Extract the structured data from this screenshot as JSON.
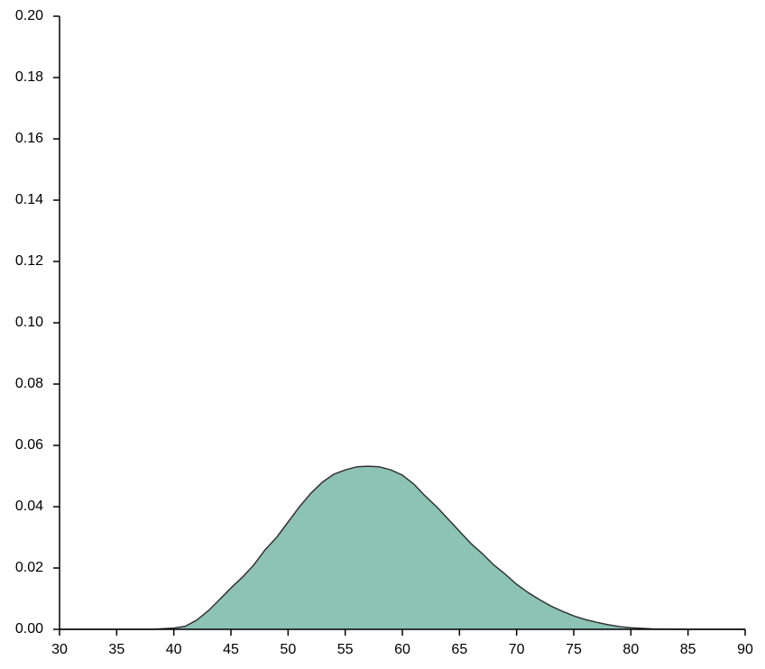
{
  "chart_data": {
    "type": "area",
    "x": [
      30,
      35,
      38,
      39,
      40,
      41,
      42,
      43,
      44,
      45,
      46,
      47,
      48,
      49,
      50,
      51,
      52,
      53,
      54,
      55,
      56,
      57,
      58,
      59,
      60,
      61,
      62,
      63,
      64,
      65,
      66,
      67,
      68,
      69,
      70,
      71,
      72,
      73,
      74,
      75,
      76,
      77,
      78,
      79,
      80,
      82,
      85,
      90
    ],
    "series": [
      {
        "color": "#8cc3b4",
        "values": [
          0,
          0,
          0,
          0.0002,
          0.0004,
          0.001,
          0.003,
          0.006,
          0.0097,
          0.0135,
          0.017,
          0.021,
          0.026,
          0.03,
          0.035,
          0.04,
          0.0444,
          0.048,
          0.0506,
          0.052,
          0.053,
          0.0532,
          0.053,
          0.052,
          0.0503,
          0.0474,
          0.0435,
          0.04,
          0.036,
          0.032,
          0.028,
          0.0247,
          0.021,
          0.018,
          0.0147,
          0.012,
          0.0097,
          0.0076,
          0.0059,
          0.0044,
          0.0032,
          0.0023,
          0.0015,
          0.0009,
          0.0005,
          0.0001,
          0,
          0
        ]
      }
    ],
    "xlim": [
      30,
      90
    ],
    "xticks": [
      30,
      35,
      40,
      45,
      50,
      55,
      60,
      65,
      70,
      75,
      80,
      85,
      90
    ],
    "ylim": [
      0,
      0.2
    ],
    "yticks": [
      {
        "value": 0,
        "label": "0.00"
      },
      {
        "value": 0.02,
        "label": "0.02"
      },
      {
        "value": 0.04,
        "label": "0.04"
      },
      {
        "value": 0.06,
        "label": "0.06"
      },
      {
        "value": 0.08,
        "label": "0.08"
      },
      {
        "value": 0.1,
        "label": "0.10"
      },
      {
        "value": 0.12,
        "label": "0.12"
      },
      {
        "value": 0.14,
        "label": "0.14"
      },
      {
        "value": 0.16,
        "label": "0.16"
      },
      {
        "value": 0.18,
        "label": "0.18"
      },
      {
        "value": 0.2,
        "label": "0.20"
      }
    ],
    "grid": false
  }
}
